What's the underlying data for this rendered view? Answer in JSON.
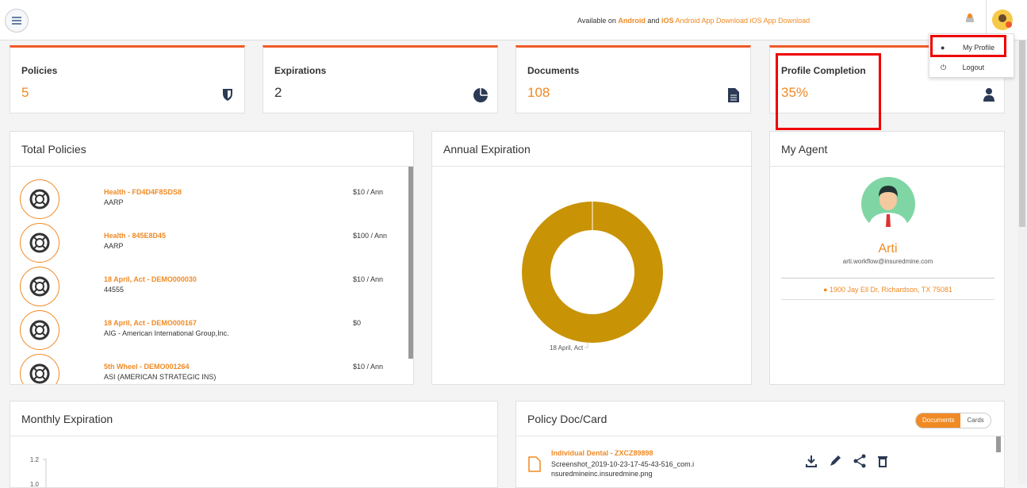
{
  "header": {
    "available": "Available on",
    "android": "Android",
    "and": "and",
    "ios": "iOS",
    "android_alt": "Android App Download",
    "ios_alt": "iOS App Download"
  },
  "menu": {
    "items": [
      "My Profile",
      "Logout"
    ]
  },
  "stats": [
    {
      "label": "Policies",
      "value": "5"
    },
    {
      "label": "Expirations",
      "value": "2"
    },
    {
      "label": "Documents",
      "value": "108"
    },
    {
      "label": "Profile Completion",
      "value": "35%"
    }
  ],
  "total_policies": {
    "title": "Total Policies",
    "items": [
      {
        "name": "Health - FD4D4F8SDS8",
        "carrier": "AARP",
        "price": "$10 / Ann"
      },
      {
        "name": "Health - 845E8D45",
        "carrier": "AARP",
        "price": "$100 / Ann"
      },
      {
        "name": "18 April, Act - DEMO000030",
        "carrier": "44555",
        "price": "$10 / Ann"
      },
      {
        "name": "18 April, Act - DEMO000167",
        "carrier": "AIG - American International Group,Inc.",
        "price": "$0"
      },
      {
        "name": "5th Wheel - DEMO001264",
        "carrier": "ASI (AMERICAN STRATEGIC INS)",
        "price": "$10 / Ann"
      }
    ]
  },
  "annual_expiration": {
    "title": "Annual Expiration",
    "segment_label": "18 April, Act"
  },
  "my_agent": {
    "title": "My Agent",
    "name": "Arti",
    "email": "arti.workflow@insuredmine.com",
    "address": "1900 Jay Ell Dr, Richardson, TX 75081"
  },
  "monthly_expiration": {
    "title": "Monthly Expiration",
    "yticks": [
      "1.2",
      "1.0"
    ]
  },
  "policy_doc": {
    "title": "Policy Doc/Card",
    "tabs": [
      "Documents",
      "Cards"
    ],
    "items": [
      {
        "name": "Individual Dental - ZXCZ89898",
        "file": "Screenshot_2019-10-23-17-45-43-516_com.insuredmineinc.insuredmine.png"
      }
    ]
  }
}
